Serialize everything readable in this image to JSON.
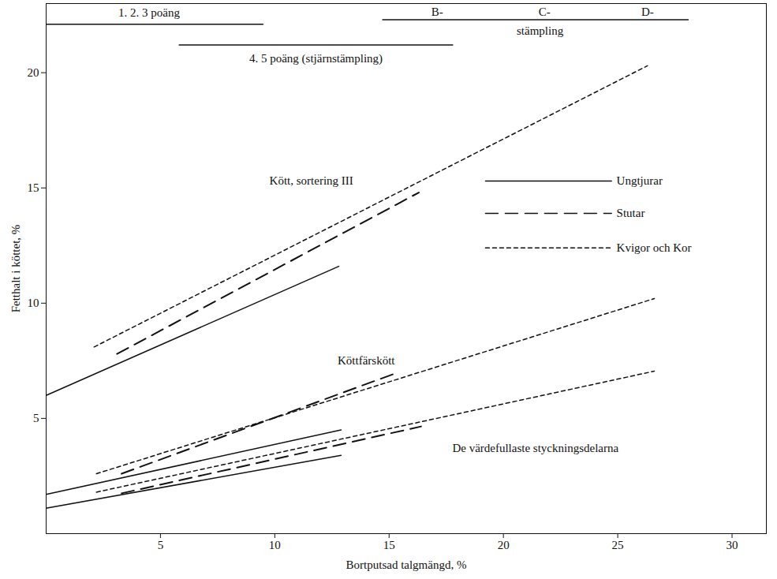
{
  "chart_data": {
    "type": "line",
    "x_label": "Bortputsad talgmängd, %",
    "y_label": "Fetthalt i köttet, %",
    "xlim": [
      0,
      31.5
    ],
    "ylim": [
      0,
      23
    ],
    "xticks": [
      5,
      10,
      15,
      20,
      25,
      30
    ],
    "yticks": [
      5,
      10,
      15,
      20
    ],
    "grid": false,
    "legend": "top-right",
    "series": [
      {
        "name": "Ungtjurar",
        "group": "Kött, sortering III",
        "color": "#111111",
        "line_style": "solid",
        "x": [
          0,
          12.8
        ],
        "values": [
          6.0,
          11.6
        ]
      },
      {
        "name": "Stutar",
        "group": "Kött, sortering III",
        "color": "#111111",
        "line_style": "dashed",
        "x": [
          3.1,
          16.3
        ],
        "values": [
          7.8,
          14.8
        ]
      },
      {
        "name": "Kvigor och Kor",
        "group": "Kött, sortering III",
        "color": "#111111",
        "line_style": "dotted",
        "x": [
          2.1,
          26.3
        ],
        "values": [
          8.1,
          20.3
        ]
      },
      {
        "name": "Ungtjurar",
        "group": "Köttfärskött",
        "color": "#111111",
        "line_style": "solid",
        "x": [
          0,
          12.9
        ],
        "values": [
          1.7,
          4.5
        ]
      },
      {
        "name": "Stutar",
        "group": "Köttfärskött",
        "color": "#111111",
        "line_style": "dashed",
        "x": [
          3.3,
          15.4
        ],
        "values": [
          2.6,
          7.0
        ]
      },
      {
        "name": "Kvigor och Kor",
        "group": "Köttfärskött",
        "color": "#111111",
        "line_style": "dotted",
        "x": [
          2.2,
          26.6
        ],
        "values": [
          2.6,
          10.2
        ]
      },
      {
        "name": "Ungtjurar",
        "group": "De värdefullaste styckningsdelarna",
        "color": "#111111",
        "line_style": "solid",
        "x": [
          0,
          12.9
        ],
        "values": [
          1.1,
          3.4
        ]
      },
      {
        "name": "Stutar",
        "group": "De värdefullaste styckningsdelarna",
        "color": "#111111",
        "line_style": "dashed",
        "x": [
          3.3,
          16.4
        ],
        "values": [
          1.75,
          4.65
        ]
      },
      {
        "name": "Kvigor och Kor",
        "group": "De värdefullaste styckningsdelarna",
        "color": "#111111",
        "line_style": "dotted",
        "x": [
          2.2,
          26.6
        ],
        "values": [
          1.8,
          7.05
        ]
      }
    ],
    "ranges": [
      {
        "x": [
          0,
          9.5
        ],
        "y": 22.1
      },
      {
        "x": [
          14.7,
          28.1
        ],
        "y": 22.3
      },
      {
        "x": [
          5.8,
          17.8
        ],
        "y": 21.2
      }
    ],
    "annotations": [
      {
        "text": "1. 2. 3 poäng",
        "x": 4.5,
        "y": 22.6
      },
      {
        "text": "B-",
        "x": 17.1,
        "y": 22.65
      },
      {
        "text": "C-",
        "x": 21.8,
        "y": 22.65
      },
      {
        "text": "D-",
        "x": 26.3,
        "y": 22.65
      },
      {
        "text": "stämpling",
        "x": 21.6,
        "y": 21.8
      },
      {
        "text": "4. 5 poäng (stjärnstämpling)",
        "x": 11.8,
        "y": 20.6
      },
      {
        "text": "Kött, sortering III",
        "x": 11.6,
        "y": 15.3
      },
      {
        "text": "Köttfärskött",
        "x": 14.0,
        "y": 7.5
      },
      {
        "text": "De värdefullaste styckningsdelarna",
        "x": 21.4,
        "y": 3.7
      }
    ]
  }
}
